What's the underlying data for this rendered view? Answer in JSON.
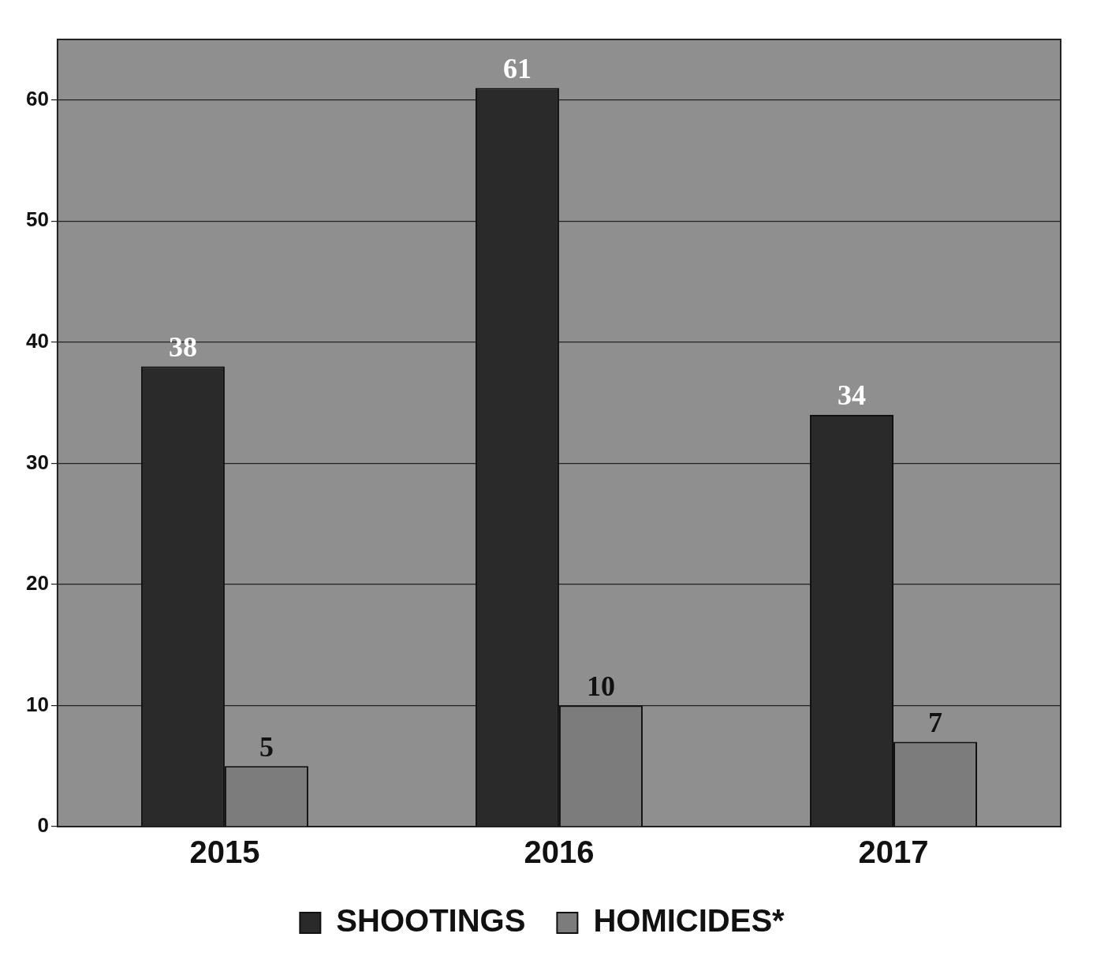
{
  "chart_data": {
    "type": "bar",
    "categories": [
      "2015",
      "2016",
      "2017"
    ],
    "series": [
      {
        "name": "SHOOTINGS",
        "color": "#2a2a2a",
        "values": [
          38,
          61,
          34
        ]
      },
      {
        "name": "HOMICIDES*",
        "color": "#7c7c7c",
        "values": [
          5,
          10,
          7
        ]
      }
    ],
    "ylim": [
      0,
      65
    ],
    "yticks": [
      0,
      10,
      20,
      30,
      40,
      50,
      60
    ],
    "grid": "y",
    "legend": "bottom",
    "data_labels": true
  }
}
